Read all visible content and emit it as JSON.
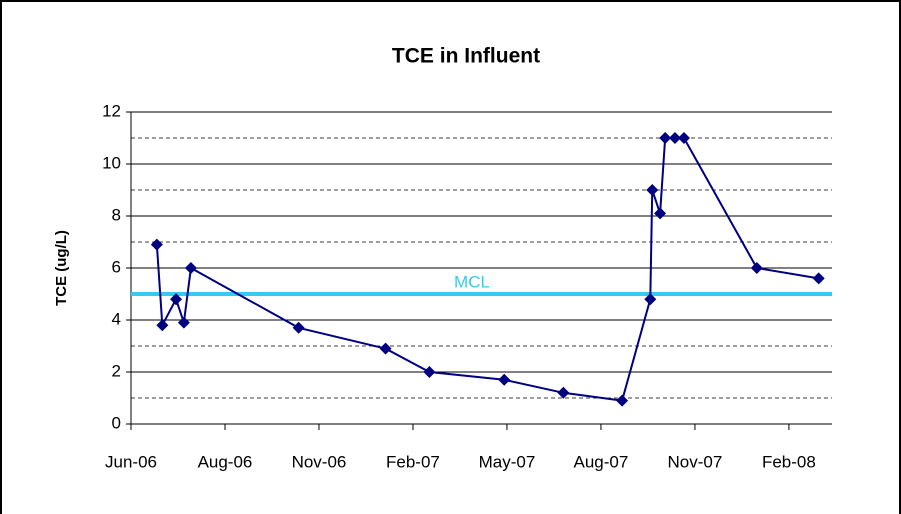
{
  "chart_data": {
    "type": "line",
    "title": "TCE in Influent",
    "y_label": "TCE (ug/L)",
    "x": [
      2006.486,
      2006.5,
      2006.535,
      2006.555,
      2006.573,
      2006.848,
      2007.07,
      2007.182,
      2007.373,
      2007.524,
      2007.674,
      2007.746,
      2007.751,
      2007.771,
      2007.784,
      2007.809,
      2007.832,
      2008.018,
      2008.176
    ],
    "series": [
      {
        "name": "TCE",
        "color": "#000080",
        "values": [
          6.9,
          3.8,
          4.8,
          3.9,
          6.0,
          3.7,
          2.9,
          2.0,
          1.7,
          1.2,
          0.9,
          4.8,
          9.0,
          8.1,
          11.0,
          11.0,
          11.0,
          6.0,
          5.6
        ]
      }
    ],
    "xlim": [
      2006.42,
      2008.21
    ],
    "xticks": [
      {
        "value": 2006.42,
        "label": "Jun-06"
      },
      {
        "value": 2006.66,
        "label": "Aug-06"
      },
      {
        "value": 2006.9,
        "label": "Nov-06"
      },
      {
        "value": 2007.14,
        "label": "Feb-07"
      },
      {
        "value": 2007.38,
        "label": "May-07"
      },
      {
        "value": 2007.62,
        "label": "Aug-07"
      },
      {
        "value": 2007.86,
        "label": "Nov-07"
      },
      {
        "value": 2008.1,
        "label": "Feb-08"
      }
    ],
    "ylim": [
      0,
      12
    ],
    "yticks": [
      0,
      2,
      4,
      6,
      8,
      10,
      12
    ],
    "minor_yticks": [
      1,
      3,
      5,
      7,
      9,
      11
    ],
    "grid": true,
    "reference_line": {
      "label": "MCL",
      "value": 5,
      "color": "#33ccee"
    }
  }
}
